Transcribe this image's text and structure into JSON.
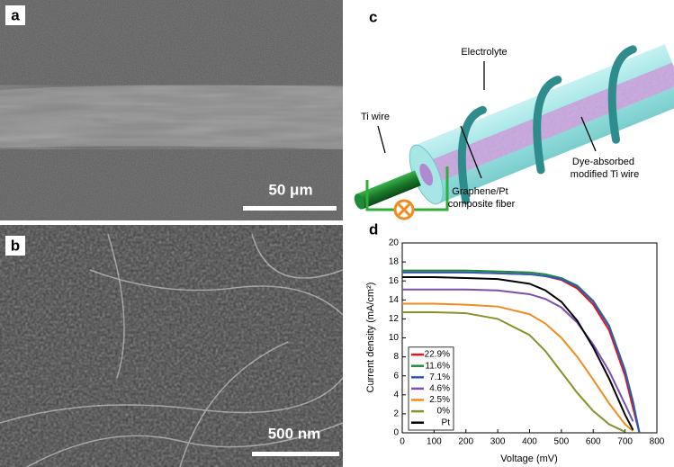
{
  "panels": {
    "a": {
      "label": "a",
      "scale_bar": "50 μm"
    },
    "b": {
      "label": "b",
      "scale_bar": "500 nm"
    },
    "c": {
      "label": "c",
      "electrolyte": "Electrolyte",
      "ti_wire": "Ti wire",
      "dye_wire": [
        "Dye-absorbed",
        "modified Ti wire"
      ],
      "fiber": [
        "Graphene/Pt",
        "composite fiber"
      ]
    }
  },
  "chart_data": {
    "type": "line",
    "label": "d",
    "x_label": "Voltage (mV)",
    "y_label": "Current density (mA/cm²)",
    "x": [
      0,
      100,
      200,
      300,
      400,
      450,
      500,
      550,
      600,
      650,
      700,
      725,
      745
    ],
    "xlim": [
      0,
      800
    ],
    "xticks": [
      0,
      100,
      200,
      300,
      400,
      500,
      600,
      700,
      800
    ],
    "ylim": [
      0,
      20
    ],
    "yticks": [
      0,
      2,
      4,
      6,
      8,
      10,
      12,
      14,
      16,
      18,
      20
    ],
    "legend": "lower left",
    "series": [
      {
        "name": "22.9%",
        "color": "#e8141b",
        "values": [
          16.9,
          16.9,
          16.9,
          16.8,
          16.7,
          16.5,
          16.1,
          15.2,
          13.5,
          10.8,
          6.0,
          2.6,
          0
        ]
      },
      {
        "name": "11.6%",
        "color": "#1e8a3a",
        "values": [
          17.1,
          17.1,
          17.1,
          17.0,
          16.9,
          16.7,
          16.3,
          15.5,
          13.9,
          11.3,
          6.6,
          3.3,
          0
        ]
      },
      {
        "name": "7.1%",
        "color": "#2a5cb8",
        "values": [
          16.9,
          16.9,
          16.9,
          16.8,
          16.7,
          16.5,
          16.2,
          15.4,
          13.8,
          11.2,
          6.5,
          3.2,
          0
        ]
      },
      {
        "name": "4.6%",
        "color": "#7a4fb0",
        "values": [
          15.1,
          15.1,
          15.1,
          15.0,
          14.6,
          14.1,
          13.2,
          11.6,
          9.3,
          6.5,
          3.0,
          1.2,
          null
        ]
      },
      {
        "name": "2.5%",
        "color": "#f28a1c",
        "values": [
          13.6,
          13.6,
          13.5,
          13.3,
          12.5,
          11.5,
          10.0,
          8.0,
          5.6,
          3.1,
          0.9,
          0.2,
          null
        ]
      },
      {
        "name": "0%",
        "color": "#8a8f2a",
        "values": [
          12.7,
          12.7,
          12.6,
          12.0,
          10.3,
          8.6,
          6.4,
          4.2,
          2.3,
          0.9,
          0.1,
          null,
          null
        ]
      },
      {
        "name": "Pt",
        "color": "#000000",
        "values": [
          16.4,
          16.4,
          16.3,
          16.2,
          15.7,
          15.0,
          13.8,
          11.8,
          9.0,
          5.7,
          1.9,
          0.3,
          null
        ]
      }
    ]
  }
}
